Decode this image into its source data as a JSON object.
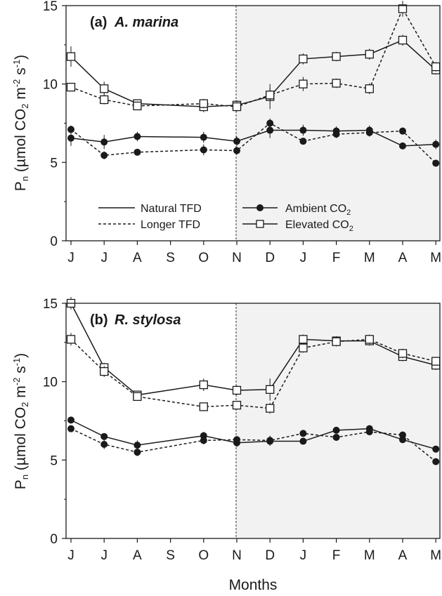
{
  "figure": {
    "xlabel": "Months",
    "ylabel_main": "P",
    "ylabel_sub": "n",
    "ylabel_rest1": " (µmol CO",
    "ylabel_sub2": "2",
    "ylabel_rest2": " m",
    "ylabel_sup1": "-2",
    "ylabel_rest3": " s",
    "ylabel_sup2": "-1",
    "ylabel_rest4": ")"
  },
  "legend": {
    "natural_tfd": "Natural TFD",
    "longer_tfd": "Longer TFD",
    "ambient_co2": "Ambient CO",
    "ambient_co2_sub": "2",
    "elevated_co2": "Elevated CO",
    "elevated_co2_sub": "2"
  },
  "chart_data": [
    {
      "type": "line",
      "panel_label": "(a)",
      "title": "A. marina",
      "categories": [
        "J",
        "J",
        "A",
        "S",
        "O",
        "N",
        "D",
        "J",
        "F",
        "M",
        "A",
        "M"
      ],
      "ylim": [
        0,
        15
      ],
      "yticks": [
        0,
        5,
        10,
        15
      ],
      "shaded_from_category": 5,
      "series": [
        {
          "style": "natural",
          "marker": "filled-circle",
          "x": [
            0,
            1,
            2,
            4,
            5,
            6,
            7,
            8,
            9,
            10,
            11
          ],
          "values": [
            6.55,
            6.3,
            6.65,
            6.6,
            6.35,
            7.05,
            7.05,
            7.0,
            7.05,
            6.05,
            6.15
          ],
          "errors": [
            0.5,
            0.45,
            0.3,
            0.35,
            0.3,
            0.5,
            0.35,
            0.3,
            0.3,
            0.2,
            0.3
          ]
        },
        {
          "style": "longer",
          "marker": "filled-circle",
          "x": [
            0,
            1,
            2,
            4,
            5,
            6,
            7,
            8,
            9,
            10,
            11
          ],
          "values": [
            7.1,
            5.45,
            5.65,
            5.8,
            5.75,
            7.5,
            6.35,
            6.8,
            6.9,
            7.0,
            4.95
          ],
          "errors": [
            0.25,
            0.25,
            0.2,
            0.35,
            0.25,
            0.3,
            0.2,
            0.25,
            0.25,
            0.2,
            0.2
          ]
        },
        {
          "style": "natural",
          "marker": "open-square",
          "x": [
            0,
            1,
            2,
            4,
            5,
            6,
            7,
            8,
            9,
            10,
            11
          ],
          "values": [
            11.75,
            9.7,
            8.75,
            8.55,
            8.65,
            9.2,
            11.6,
            11.75,
            11.9,
            12.8,
            10.9
          ],
          "errors": [
            0.65,
            0.45,
            0.25,
            0.35,
            0.3,
            0.8,
            0.35,
            0.3,
            0.35,
            0.35,
            0.3
          ]
        },
        {
          "style": "longer",
          "marker": "open-square",
          "x": [
            0,
            1,
            2,
            4,
            5,
            6,
            7,
            8,
            9,
            10,
            11
          ],
          "values": [
            9.8,
            9.0,
            8.6,
            8.75,
            8.55,
            9.3,
            10.0,
            10.05,
            9.7,
            14.8,
            11.1
          ],
          "errors": [
            0.2,
            0.3,
            0.25,
            0.3,
            0.3,
            0.4,
            0.45,
            0.3,
            0.35,
            0.5,
            0.3
          ]
        }
      ]
    },
    {
      "type": "line",
      "panel_label": "(b)",
      "title": "R. stylosa",
      "categories": [
        "J",
        "J",
        "A",
        "S",
        "O",
        "N",
        "D",
        "J",
        "F",
        "M",
        "A",
        "M"
      ],
      "ylim": [
        0,
        15
      ],
      "yticks": [
        0,
        5,
        10,
        15
      ],
      "shaded_from_category": 5,
      "series": [
        {
          "style": "natural",
          "marker": "filled-circle",
          "x": [
            0,
            1,
            2,
            4,
            5,
            6,
            7,
            8,
            9,
            10,
            11
          ],
          "values": [
            7.55,
            6.5,
            5.95,
            6.55,
            6.1,
            6.2,
            6.2,
            6.9,
            7.0,
            6.3,
            5.7
          ],
          "errors": [
            0.2,
            0.2,
            0.3,
            0.25,
            0.25,
            0.3,
            0.2,
            0.2,
            0.2,
            0.2,
            0.2
          ]
        },
        {
          "style": "longer",
          "marker": "filled-circle",
          "x": [
            0,
            1,
            2,
            4,
            5,
            6,
            7,
            8,
            9,
            10,
            11
          ],
          "values": [
            7.0,
            6.0,
            5.5,
            6.25,
            6.3,
            6.25,
            6.7,
            6.45,
            6.8,
            6.6,
            4.9
          ],
          "errors": [
            0.2,
            0.3,
            0.25,
            0.25,
            0.2,
            0.3,
            0.2,
            0.2,
            0.2,
            0.2,
            0.2
          ]
        },
        {
          "style": "natural",
          "marker": "open-square",
          "x": [
            0,
            1,
            2,
            4,
            5,
            6,
            7,
            8,
            9,
            10,
            11
          ],
          "values": [
            15.0,
            10.9,
            9.15,
            9.8,
            9.45,
            9.5,
            12.7,
            12.6,
            12.6,
            11.6,
            11.05
          ],
          "errors": [
            0.4,
            0.3,
            0.2,
            0.4,
            0.3,
            0.7,
            0.3,
            0.3,
            0.3,
            0.3,
            0.3
          ]
        },
        {
          "style": "longer",
          "marker": "open-square",
          "x": [
            0,
            1,
            2,
            4,
            5,
            6,
            7,
            8,
            9,
            10,
            11
          ],
          "values": [
            12.7,
            10.65,
            9.05,
            8.4,
            8.5,
            8.3,
            12.15,
            12.55,
            12.7,
            11.8,
            11.3
          ],
          "errors": [
            0.4,
            0.35,
            0.2,
            0.25,
            0.25,
            0.35,
            0.3,
            0.3,
            0.3,
            0.3,
            0.25
          ]
        }
      ]
    }
  ]
}
